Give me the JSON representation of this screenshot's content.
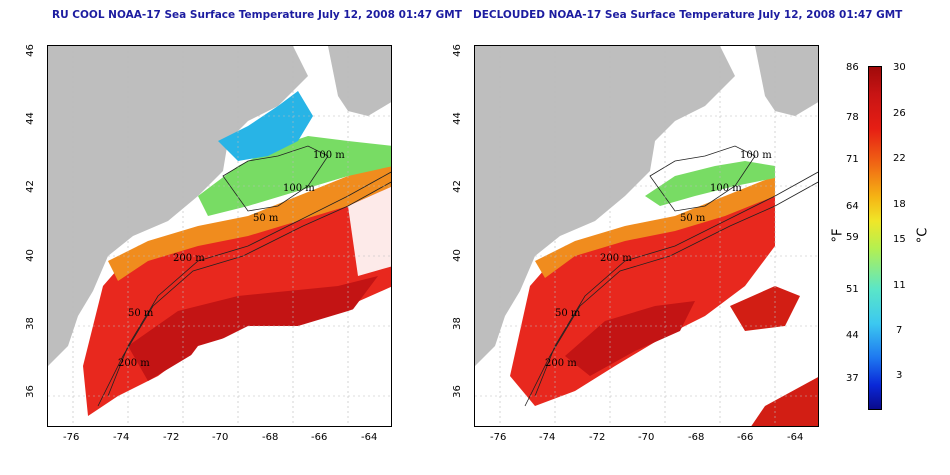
{
  "titles": {
    "left": "RU COOL NOAA-17 Sea Surface Temperature July 12, 2008 01:47 GMT",
    "right": "DECLOUDED NOAA-17 Sea Surface Temperature July 12, 2008 01:47 GMT"
  },
  "axes": {
    "x_ticks": [
      "-76",
      "-74",
      "-72",
      "-70",
      "-68",
      "-66",
      "-64"
    ],
    "y_ticks": [
      "46",
      "44",
      "42",
      "40",
      "38",
      "36"
    ]
  },
  "contours": {
    "labels": [
      "100 m",
      "100 m",
      "50 m",
      "200 m",
      "50 m",
      "200 m"
    ]
  },
  "colorbar": {
    "f_label": "°F",
    "c_label": "°C",
    "f_ticks": [
      "86",
      "78",
      "71",
      "64",
      "59",
      "51",
      "44",
      "37"
    ],
    "c_ticks": [
      "30",
      "26",
      "22",
      "18",
      "15",
      "11",
      "7",
      "3"
    ]
  },
  "colors": {
    "land": "#bebebe",
    "cloud": "#ffffff",
    "warm": "#e8281e",
    "hot": "#c31414",
    "shelf": "#f08c1e",
    "cool": "#78dc64",
    "cold": "#28b4e6",
    "title": "#1c1ca0"
  }
}
